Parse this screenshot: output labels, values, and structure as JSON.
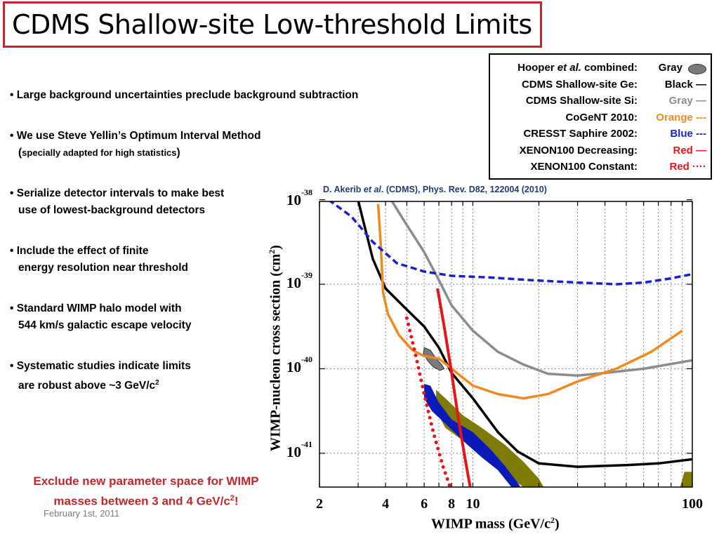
{
  "title": "CDMS Shallow-site Low-threshold Limits",
  "legend": [
    {
      "label_pre": "Hooper ",
      "label_em": "et al.",
      "label_post": " combined:",
      "value": "Gray",
      "color": "#000000",
      "swatch": "gray-ellipse"
    },
    {
      "label_pre": "CDMS Shallow-site Ge:",
      "label_em": "",
      "label_post": "",
      "value": "Black —",
      "color": "#000000"
    },
    {
      "label_pre": "CDMS Shallow-site Si:",
      "label_em": "",
      "label_post": "",
      "value": "Gray —",
      "color": "#8c8c8c"
    },
    {
      "label_pre": "CoGeNT 2010:",
      "label_em": "",
      "label_post": "",
      "value": "Orange ---",
      "color": "#f08a1c"
    },
    {
      "label_pre": "CRESST Saphire 2002:",
      "label_em": "",
      "label_post": "",
      "value": "Blue ---",
      "color": "#1a1fd0"
    },
    {
      "label_pre": "XENON100 Decreasing:",
      "label_em": "",
      "label_post": "",
      "value": "Red —",
      "color": "#e8141c"
    },
    {
      "label_pre": "XENON100 Constant:",
      "label_em": "",
      "label_post": "",
      "value": "Red ····",
      "color": "#e8141c"
    }
  ],
  "bullets": [
    {
      "line1": "• Large background uncertainties preclude background subtraction"
    },
    {
      "line1": "• We use Steve Yellin’s Optimum Interval Method",
      "line2_open": "(",
      "line2_small": "specially adapted for high statistics",
      "line2_close": ")"
    },
    {
      "line1": "• Serialize detector intervals to make best",
      "line2": "use of lowest-background detectors"
    },
    {
      "line1": "• Include the effect of finite",
      "line2": "energy resolution near threshold"
    },
    {
      "line1": "• Standard WIMP halo model with",
      "line2": "544 km/s galactic escape velocity"
    },
    {
      "line1": "• Systematic studies indicate limits",
      "line2": "are robust above ~3 GeV/c",
      "line2_sup": "2"
    }
  ],
  "conclusion": {
    "line1": "Exclude new parameter space for WIMP",
    "line2": "masses between 3 and 4 GeV/c",
    "sup": "2",
    "tail": "!"
  },
  "footer_date": "February 1st, 2011",
  "citation": {
    "pre": "D. Akerib ",
    "em": "et al",
    "post": ". (CDMS), Phys. Rev. D82, 122004 (2010)"
  },
  "chart_data": {
    "type": "line",
    "xlabel": "WIMP mass (GeV/c",
    "xlabel_sup": "2",
    "xlabel_tail": ")",
    "ylabel": "WIMP-nucleon cross section (cm",
    "ylabel_sup": "2",
    "ylabel_tail": ")",
    "x_scale": "log",
    "y_scale": "log",
    "xlim": [
      2,
      100
    ],
    "ylim": [
      -41.4,
      -38.02
    ],
    "x_ticks": [
      {
        "value": 2,
        "label": "2"
      },
      {
        "value": 4,
        "label": "4"
      },
      {
        "value": 6,
        "label": "6"
      },
      {
        "value": 8,
        "label": "8"
      },
      {
        "value": 10,
        "label": "10"
      },
      {
        "value": 100,
        "label": "100"
      }
    ],
    "y_ticks": [
      {
        "value": -38,
        "base": "10",
        "exp": "-38"
      },
      {
        "value": -39,
        "base": "10",
        "exp": "-39"
      },
      {
        "value": -40,
        "base": "10",
        "exp": "-40"
      },
      {
        "value": -41,
        "base": "10",
        "exp": "-41"
      }
    ],
    "grid": true,
    "series": [
      {
        "name": "CDMS Shallow-site Ge",
        "color": "#000000",
        "style": "solid",
        "width": 3.5,
        "points": [
          [
            2.9,
            -37.85
          ],
          [
            3.2,
            -38.3
          ],
          [
            3.5,
            -38.7
          ],
          [
            4,
            -39.05
          ],
          [
            5,
            -39.3
          ],
          [
            6,
            -39.5
          ],
          [
            7,
            -39.75
          ],
          [
            8,
            -40.05
          ],
          [
            10,
            -40.35
          ],
          [
            13,
            -40.75
          ],
          [
            16,
            -40.98
          ],
          [
            20,
            -41.12
          ],
          [
            30,
            -41.16
          ],
          [
            50,
            -41.14
          ],
          [
            70,
            -41.12
          ],
          [
            100,
            -41.07
          ]
        ]
      },
      {
        "name": "CDMS Shallow-site Si",
        "color": "#8c8c8c",
        "style": "solid",
        "width": 3.5,
        "points": [
          [
            3.9,
            -37.85
          ],
          [
            5,
            -38.3
          ],
          [
            6,
            -38.62
          ],
          [
            7,
            -38.95
          ],
          [
            8,
            -39.25
          ],
          [
            10,
            -39.55
          ],
          [
            13,
            -39.8
          ],
          [
            17,
            -39.95
          ],
          [
            22,
            -40.06
          ],
          [
            30,
            -40.08
          ],
          [
            40,
            -40.05
          ],
          [
            60,
            -40.0
          ],
          [
            100,
            -39.9
          ]
        ]
      },
      {
        "name": "CoGeNT 2010",
        "color": "#f08a1c",
        "style": "solid",
        "width": 3.5,
        "points": [
          [
            3.7,
            -38.05
          ],
          [
            3.8,
            -38.5
          ],
          [
            3.9,
            -39.1
          ],
          [
            4.1,
            -39.35
          ],
          [
            4.6,
            -39.6
          ],
          [
            5.3,
            -39.78
          ],
          [
            6,
            -39.85
          ],
          [
            7,
            -39.88
          ],
          [
            8,
            -40.0
          ],
          [
            10,
            -40.2
          ],
          [
            13,
            -40.3
          ],
          [
            17,
            -40.35
          ],
          [
            22,
            -40.3
          ],
          [
            30,
            -40.15
          ],
          [
            45,
            -40.0
          ],
          [
            65,
            -39.8
          ],
          [
            90,
            -39.55
          ]
        ]
      },
      {
        "name": "CRESST Saphire 2002",
        "color": "#1a1fd0",
        "style": "dashed",
        "width": 3.5,
        "points": [
          [
            2.2,
            -38.0
          ],
          [
            2.8,
            -38.2
          ],
          [
            3.5,
            -38.5
          ],
          [
            4.5,
            -38.75
          ],
          [
            6,
            -38.85
          ],
          [
            8,
            -38.9
          ],
          [
            12,
            -38.92
          ],
          [
            18,
            -38.95
          ],
          [
            30,
            -38.98
          ],
          [
            45,
            -39.0
          ],
          [
            60,
            -38.98
          ],
          [
            80,
            -38.93
          ],
          [
            100,
            -38.88
          ]
        ]
      },
      {
        "name": "XENON100 Decreasing",
        "color": "#e8141c",
        "style": "solid",
        "width": 4,
        "points": [
          [
            6.9,
            -39.05
          ],
          [
            7.4,
            -39.5
          ],
          [
            8,
            -40.05
          ],
          [
            8.6,
            -40.6
          ],
          [
            9.2,
            -41.05
          ],
          [
            9.8,
            -41.45
          ]
        ]
      },
      {
        "name": "XENON100 Constant",
        "color": "#e8141c",
        "style": "dotted",
        "width": 5,
        "points": [
          [
            5.0,
            -39.4
          ],
          [
            5.5,
            -39.85
          ],
          [
            6,
            -40.3
          ],
          [
            6.6,
            -40.75
          ],
          [
            7.3,
            -41.15
          ],
          [
            8,
            -41.45
          ]
        ]
      }
    ],
    "regions": [
      {
        "name": "Hooper et al. combined",
        "color": "#7a7a7a",
        "type": "ellipse",
        "outline": [
          [
            6.0,
            -39.75
          ],
          [
            6.4,
            -39.78
          ],
          [
            6.8,
            -39.88
          ],
          [
            7.2,
            -39.95
          ],
          [
            7.4,
            -40.0
          ],
          [
            7.1,
            -40.02
          ],
          [
            6.6,
            -39.98
          ],
          [
            6.2,
            -39.9
          ],
          [
            5.95,
            -39.82
          ]
        ]
      },
      {
        "name": "olive band",
        "color": "#7d7a05",
        "type": "band",
        "outline": [
          [
            6.8,
            -40.25
          ],
          [
            7.5,
            -40.35
          ],
          [
            9,
            -40.55
          ],
          [
            11,
            -40.7
          ],
          [
            14,
            -40.9
          ],
          [
            17,
            -41.1
          ],
          [
            20,
            -41.3
          ],
          [
            21,
            -41.4
          ],
          [
            17,
            -41.4
          ],
          [
            14,
            -41.25
          ],
          [
            11,
            -41.05
          ],
          [
            9,
            -40.85
          ],
          [
            7.5,
            -40.7
          ],
          [
            6.8,
            -40.5
          ]
        ]
      },
      {
        "name": "blue band",
        "color": "#0a1ab8",
        "type": "band",
        "outline": [
          [
            6.0,
            -40.18
          ],
          [
            6.4,
            -40.2
          ],
          [
            7,
            -40.4
          ],
          [
            8,
            -40.6
          ],
          [
            10,
            -40.75
          ],
          [
            12,
            -40.95
          ],
          [
            14,
            -41.15
          ],
          [
            16,
            -41.35
          ],
          [
            16.5,
            -41.4
          ],
          [
            15,
            -41.4
          ],
          [
            13,
            -41.2
          ],
          [
            11,
            -41.05
          ],
          [
            9,
            -40.85
          ],
          [
            7.5,
            -40.65
          ],
          [
            6.5,
            -40.5
          ],
          [
            6.0,
            -40.35
          ]
        ]
      },
      {
        "name": "olive corner",
        "color": "#7d7a05",
        "type": "band",
        "outline": [
          [
            92,
            -41.22
          ],
          [
            100,
            -41.22
          ],
          [
            100,
            -41.4
          ],
          [
            88,
            -41.4
          ]
        ]
      }
    ]
  }
}
